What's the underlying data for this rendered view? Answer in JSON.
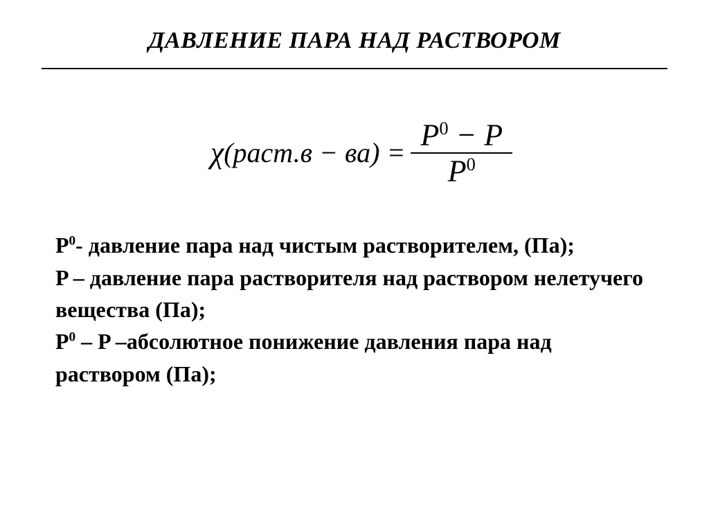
{
  "title": "ДАВЛЕНИЕ ПАРА НАД РАСТВОРОМ",
  "formula": {
    "chi": "χ",
    "arg_prefix": "(",
    "arg_text": "раст.в − ва",
    "arg_suffix": ") =",
    "numerator_p0": "P",
    "numerator_sup": "0",
    "numerator_minus": " − ",
    "numerator_p": "P",
    "denominator_p": "P",
    "denominator_sup": "0"
  },
  "defs": {
    "line1_var": "P",
    "line1_sup": "0",
    "line1_text": "- давление пара над чистым растворителем, (Па);",
    "line2_var": "P",
    "line2_text": " – давление пара растворителя над раствором нелетучего вещества (Па);",
    "line3_var1": "P",
    "line3_sup": "0",
    "line3_mid": " – ",
    "line3_var2": "P",
    "line3_text": " –абсолютное понижение давления пара над раствором (Па);"
  },
  "style": {
    "title_fontsize": 34,
    "formula_fontsize": 44,
    "def_fontsize": 32,
    "text_color": "#000000",
    "background_color": "#ffffff",
    "hr_color": "#000000"
  }
}
